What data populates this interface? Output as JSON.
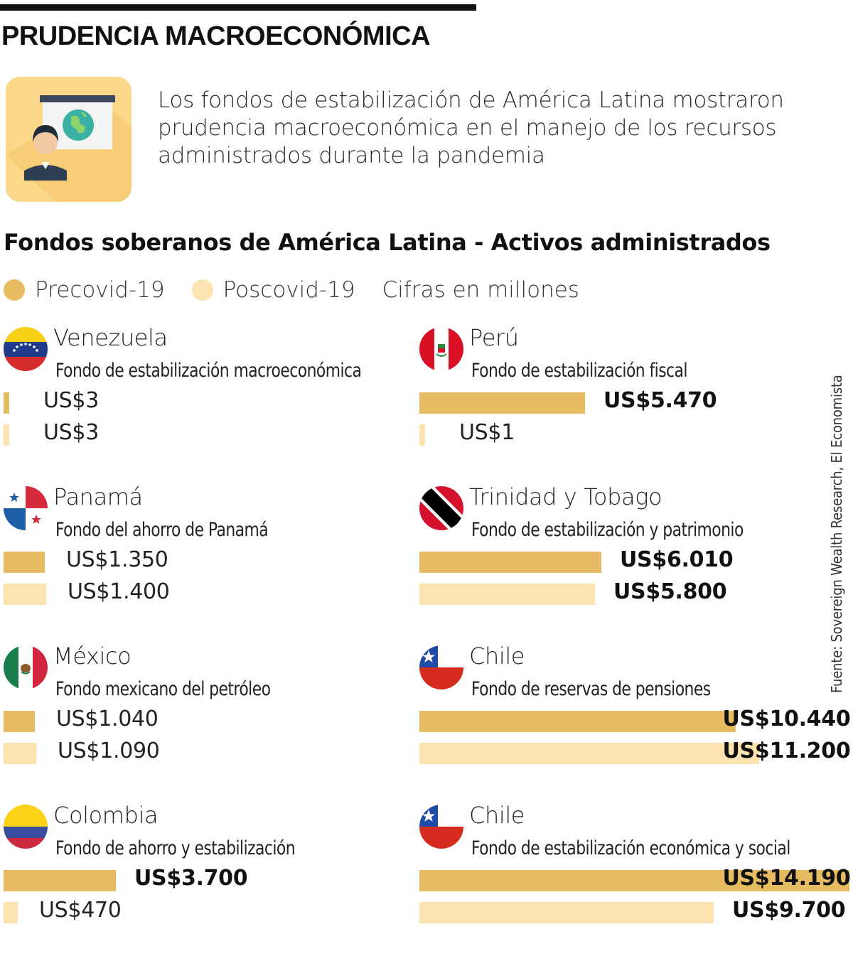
{
  "title": "PRUDENCIA MACROECONÓMICA",
  "intro": "Los fondos de estabilización de América Latina mostraron prudencia macroeconómica en el manejo de los recursos administrados durante la pandemia",
  "icon": "presentation-icon",
  "colors": {
    "pre": "#e7bb61",
    "post": "#fde3b0",
    "tile": "#fbd88a"
  },
  "source": "Fuente: Sovereign Wealth Research, El Economista",
  "chart_data": {
    "type": "bar",
    "title": "Fondos soberanos de América Latina - Activos administrados",
    "unit_note": "Cifras en millones",
    "legend": [
      "Precovid-19",
      "Poscovid-19"
    ],
    "legend_placement": "top-left",
    "max_value": 14190,
    "funds": [
      {
        "country": "Venezuela",
        "fund": "Fondo de estabilización macroeconómica",
        "flag": "venezuela-flag-icon",
        "pre": 3,
        "post": 3,
        "pre_label": "US$3",
        "post_label": "US$3"
      },
      {
        "country": "Panamá",
        "fund": "Fondo del ahorro de Panamá",
        "flag": "panama-flag-icon",
        "pre": 1350,
        "post": 1400,
        "pre_label": "US$1.350",
        "post_label": "US$1.400"
      },
      {
        "country": "México",
        "fund": "Fondo mexicano del petróleo",
        "flag": "mexico-flag-icon",
        "pre": 1040,
        "post": 1090,
        "pre_label": "US$1.040",
        "post_label": "US$1.090"
      },
      {
        "country": "Colombia",
        "fund": "Fondo de ahorro y estabilización",
        "flag": "colombia-flag-icon",
        "pre": 3700,
        "post": 470,
        "pre_label": "US$3.700",
        "post_label": "US$470"
      },
      {
        "country": "Perú",
        "fund": "Fondo de estabilización fiscal",
        "flag": "peru-flag-icon",
        "pre": 5470,
        "post": 1,
        "pre_label": "US$5.470",
        "post_label": "US$1"
      },
      {
        "country": "Trinidad y Tobago",
        "fund": "Fondo de estabilización y patrimonio",
        "flag": "trinidad-flag-icon",
        "pre": 6010,
        "post": 5800,
        "pre_label": "US$6.010",
        "post_label": "US$5.800"
      },
      {
        "country": "Chile",
        "fund": "Fondo de reservas de pensiones",
        "flag": "chile-flag-icon",
        "pre": 10440,
        "post": 11200,
        "pre_label": "US$10.440",
        "post_label": "US$11.200"
      },
      {
        "country": "Chile",
        "fund": "Fondo de estabilización económica y social",
        "flag": "chile-flag-icon",
        "pre": 14190,
        "post": 9700,
        "pre_label": "US$14.190",
        "post_label": "US$9.700"
      }
    ]
  }
}
